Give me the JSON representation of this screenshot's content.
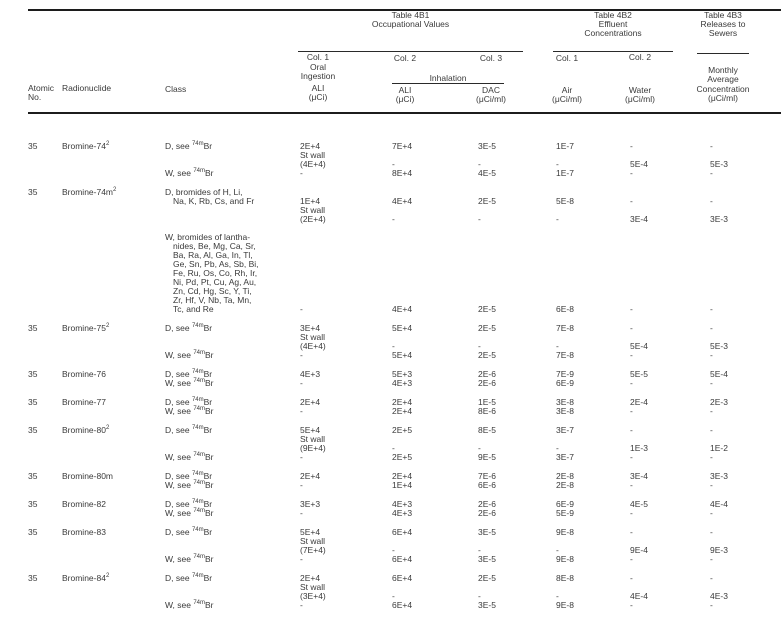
{
  "header": {
    "t4b1": {
      "line1": "Table 4B1",
      "line2": "Occupational Values"
    },
    "t4b2": {
      "line1": "Table 4B2",
      "line2": "Effluent",
      "line3": "Concentrations"
    },
    "t4b3": {
      "line1": "Table 4B3",
      "line2": "Releases to",
      "line3": "Sewers"
    },
    "atomic": {
      "line1": "Atomic",
      "line2": "No."
    },
    "radionuclide": "Radionuclide",
    "class_label": "Class",
    "oral": {
      "col": "Col. 1",
      "line1": "Oral",
      "line2": "Ingestion",
      "line3": "ALI",
      "line4": "(μCi)"
    },
    "inh": {
      "col2": "Col. 2",
      "col3": "Col. 3",
      "label": "Inhalation",
      "ali1": "ALI",
      "ali2": "(μCi)",
      "dac1": "DAC",
      "dac2": "(μCi/ml)"
    },
    "air": {
      "col": "Col. 1",
      "line1": "Air",
      "line2": "(μCi/ml)"
    },
    "water": {
      "col": "Col. 2",
      "line1": "Water",
      "line2": "(μCi/ml)"
    },
    "sewer": {
      "line1": "Monthly",
      "line2": "Average",
      "line3": "Concentration",
      "line4": "(μCi/ml)"
    }
  },
  "rows": [
    {
      "atomic_no": "35",
      "name": "Bromine-74^{2}",
      "lines": [
        {
          "cls": "D, see ^{74m}Br",
          "oral": "2E+4",
          "ali": "7E+4",
          "dac": "3E-5",
          "air": "1E-7",
          "water": "-",
          "sewer": "-"
        },
        {
          "oral": "St wall"
        },
        {
          "oral": "(4E+4)",
          "ali": "-",
          "dac": "-",
          "air": "-",
          "water": "5E-4",
          "sewer": "5E-3"
        },
        {
          "cls": "W, see ^{74m}Br",
          "oral": "-",
          "ali": "8E+4",
          "dac": "4E-5",
          "air": "1E-7",
          "water": "-",
          "sewer": "-"
        }
      ]
    },
    {
      "atomic_no": "35",
      "name": "Bromine-74m^{2}",
      "lines": [
        {
          "cls": "D, bromides of H, Li,"
        },
        {
          "cls": "Na, K, Rb, Cs, and Fr",
          "indent": true,
          "oral": "1E+4",
          "ali": "4E+4",
          "dac": "2E-5",
          "air": "5E-8",
          "water": "-",
          "sewer": "-"
        },
        {
          "oral": "St wall"
        },
        {
          "oral": "(2E+4)",
          "ali": "-",
          "dac": "-",
          "air": "-",
          "water": "3E-4",
          "sewer": "3E-3"
        },
        {
          "cls": "W, bromides of lantha-",
          "gap": true
        },
        {
          "cls": "nides, Be, Mg, Ca, Sr,",
          "indent": true
        },
        {
          "cls": "Ba, Ra, Al, Ga, In, Tl,",
          "indent": true
        },
        {
          "cls": "Ge, Sn, Pb, As, Sb, Bi,",
          "indent": true
        },
        {
          "cls": "Fe, Ru, Os, Co, Rh, Ir,",
          "indent": true
        },
        {
          "cls": "Ni, Pd, Pt, Cu, Ag, Au,",
          "indent": true
        },
        {
          "cls": "Zn, Cd, Hg, Sc, Y, Ti,",
          "indent": true
        },
        {
          "cls": "Zr, Hf, V, Nb, Ta, Mn,",
          "indent": true
        },
        {
          "cls": "Tc, and Re",
          "indent": true,
          "oral": "-",
          "ali": "4E+4",
          "dac": "2E-5",
          "air": "6E-8",
          "water": "-",
          "sewer": "-"
        }
      ]
    },
    {
      "atomic_no": "35",
      "name": "Bromine-75^{2}",
      "lines": [
        {
          "cls": "D, see ^{74m}Br",
          "oral": "3E+4",
          "ali": "5E+4",
          "dac": "2E-5",
          "air": "7E-8",
          "water": "-",
          "sewer": "-"
        },
        {
          "oral": "St wall"
        },
        {
          "oral": "(4E+4)",
          "ali": "-",
          "dac": "-",
          "air": "-",
          "water": "5E-4",
          "sewer": "5E-3"
        },
        {
          "cls": "W, see ^{74m}Br",
          "oral": "-",
          "ali": "5E+4",
          "dac": "2E-5",
          "air": "7E-8",
          "water": "-",
          "sewer": "-"
        }
      ]
    },
    {
      "atomic_no": "35",
      "name": "Bromine-76",
      "lines": [
        {
          "cls": "D, see ^{74m}Br",
          "oral": "4E+3",
          "ali": "5E+3",
          "dac": "2E-6",
          "air": "7E-9",
          "water": "5E-5",
          "sewer": "5E-4"
        },
        {
          "cls": "W, see ^{74m}Br",
          "oral": "-",
          "ali": "4E+3",
          "dac": "2E-6",
          "air": "6E-9",
          "water": "-",
          "sewer": "-"
        }
      ]
    },
    {
      "atomic_no": "35",
      "name": "Bromine-77",
      "lines": [
        {
          "cls": "D, see ^{74m}Br",
          "oral": "2E+4",
          "ali": "2E+4",
          "dac": "1E-5",
          "air": "3E-8",
          "water": "2E-4",
          "sewer": "2E-3"
        },
        {
          "cls": "W, see ^{74m}Br",
          "oral": "-",
          "ali": "2E+4",
          "dac": "8E-6",
          "air": "3E-8",
          "water": "-",
          "sewer": "-"
        }
      ]
    },
    {
      "atomic_no": "35",
      "name": "Bromine-80^{2}",
      "lines": [
        {
          "cls": "D, see ^{74m}Br",
          "oral": "5E+4",
          "ali": "2E+5",
          "dac": "8E-5",
          "air": "3E-7",
          "water": "-",
          "sewer": "-"
        },
        {
          "oral": "St wall"
        },
        {
          "oral": "(9E+4)",
          "ali": "-",
          "dac": "-",
          "air": "-",
          "water": "1E-3",
          "sewer": "1E-2"
        },
        {
          "cls": "W, see ^{74m}Br",
          "oral": "-",
          "ali": "2E+5",
          "dac": "9E-5",
          "air": "3E-7",
          "water": "-",
          "sewer": "-"
        }
      ]
    },
    {
      "atomic_no": "35",
      "name": "Bromine-80m",
      "lines": [
        {
          "cls": "D, see ^{74m}Br",
          "oral": "2E+4",
          "ali": "2E+4",
          "dac": "7E-6",
          "air": "2E-8",
          "water": "3E-4",
          "sewer": "3E-3"
        },
        {
          "cls": "W, see ^{74m}Br",
          "oral": "-",
          "ali": "1E+4",
          "dac": "6E-6",
          "air": "2E-8",
          "water": "-",
          "sewer": "-"
        }
      ]
    },
    {
      "atomic_no": "35",
      "name": "Bromine-82",
      "lines": [
        {
          "cls": "D, see ^{74m}Br",
          "oral": "3E+3",
          "ali": "4E+3",
          "dac": "2E-6",
          "air": "6E-9",
          "water": "4E-5",
          "sewer": "4E-4"
        },
        {
          "cls": "W, see ^{74m}Br",
          "oral": "-",
          "ali": "4E+3",
          "dac": "2E-6",
          "air": "5E-9",
          "water": "-",
          "sewer": "-"
        }
      ]
    },
    {
      "atomic_no": "35",
      "name": "Bromine-83",
      "lines": [
        {
          "cls": "D, see ^{74m}Br",
          "oral": "5E+4",
          "ali": "6E+4",
          "dac": "3E-5",
          "air": "9E-8",
          "water": "-",
          "sewer": "-"
        },
        {
          "oral": "St wall"
        },
        {
          "oral": "(7E+4)",
          "ali": "-",
          "dac": "-",
          "air": "-",
          "water": "9E-4",
          "sewer": "9E-3"
        },
        {
          "cls": "W, see ^{74m}Br",
          "oral": "-",
          "ali": "6E+4",
          "dac": "3E-5",
          "air": "9E-8",
          "water": "-",
          "sewer": "-"
        }
      ]
    },
    {
      "atomic_no": "35",
      "name": "Bromine-84^{2}",
      "lines": [
        {
          "cls": "D, see ^{74m}Br",
          "oral": "2E+4",
          "ali": "6E+4",
          "dac": "2E-5",
          "air": "8E-8",
          "water": "-",
          "sewer": "-"
        },
        {
          "oral": "St wall"
        },
        {
          "oral": "(3E+4)",
          "ali": "-",
          "dac": "-",
          "air": "-",
          "water": "4E-4",
          "sewer": "4E-3"
        },
        {
          "cls": "W, see ^{74m}Br",
          "oral": "-",
          "ali": "6E+4",
          "dac": "3E-5",
          "air": "9E-8",
          "water": "-",
          "sewer": "-"
        }
      ]
    }
  ]
}
